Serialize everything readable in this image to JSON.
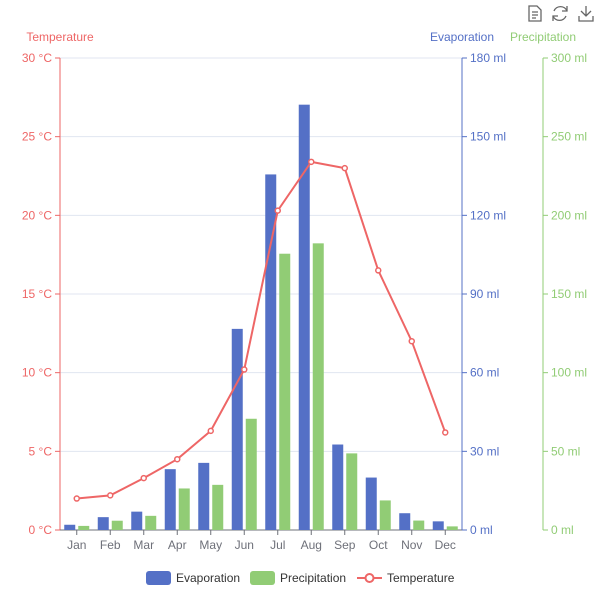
{
  "toolbox": {
    "icons": [
      "data-view-icon",
      "restore-icon",
      "save-image-icon"
    ]
  },
  "colors": {
    "evaporation": "#5470c6",
    "precipitation": "#91cc75",
    "temperature": "#ee6666"
  },
  "chart_data": {
    "type": "bar",
    "categories": [
      "Jan",
      "Feb",
      "Mar",
      "Apr",
      "May",
      "Jun",
      "Jul",
      "Aug",
      "Sep",
      "Oct",
      "Nov",
      "Dec"
    ],
    "series": [
      {
        "name": "Evaporation",
        "type": "bar",
        "axis": "evaporation",
        "values": [
          2.0,
          4.9,
          7.0,
          23.2,
          25.6,
          76.7,
          135.6,
          162.2,
          32.6,
          20.0,
          6.4,
          3.3
        ]
      },
      {
        "name": "Precipitation",
        "type": "bar",
        "axis": "precipitation",
        "values": [
          2.6,
          5.9,
          9.0,
          26.4,
          28.7,
          70.7,
          175.6,
          182.2,
          48.7,
          18.8,
          6.0,
          2.3
        ]
      },
      {
        "name": "Temperature",
        "type": "line",
        "axis": "temperature",
        "values": [
          2.0,
          2.2,
          3.3,
          4.5,
          6.3,
          10.2,
          20.3,
          23.4,
          23.0,
          16.5,
          12.0,
          6.2
        ]
      }
    ],
    "axes": {
      "temperature": {
        "name": "Temperature",
        "position": "left",
        "ylim": [
          0,
          30
        ],
        "ticks": [
          "0 °C",
          "5 °C",
          "10 °C",
          "15 °C",
          "20 °C",
          "25 °C",
          "30 °C"
        ]
      },
      "evaporation": {
        "name": "Evaporation",
        "position": "right",
        "ylim": [
          0,
          180
        ],
        "ticks": [
          "0 ml",
          "30 ml",
          "60 ml",
          "90 ml",
          "120 ml",
          "150 ml",
          "180 ml"
        ]
      },
      "precipitation": {
        "name": "Precipitation",
        "position": "right-offset",
        "ylim": [
          0,
          300
        ],
        "ticks": [
          "0 ml",
          "50 ml",
          "100 ml",
          "150 ml",
          "200 ml",
          "250 ml",
          "300 ml"
        ]
      }
    },
    "grid": true,
    "legend": {
      "placement": "bottom",
      "entries": [
        "Evaporation",
        "Precipitation",
        "Temperature"
      ]
    }
  }
}
